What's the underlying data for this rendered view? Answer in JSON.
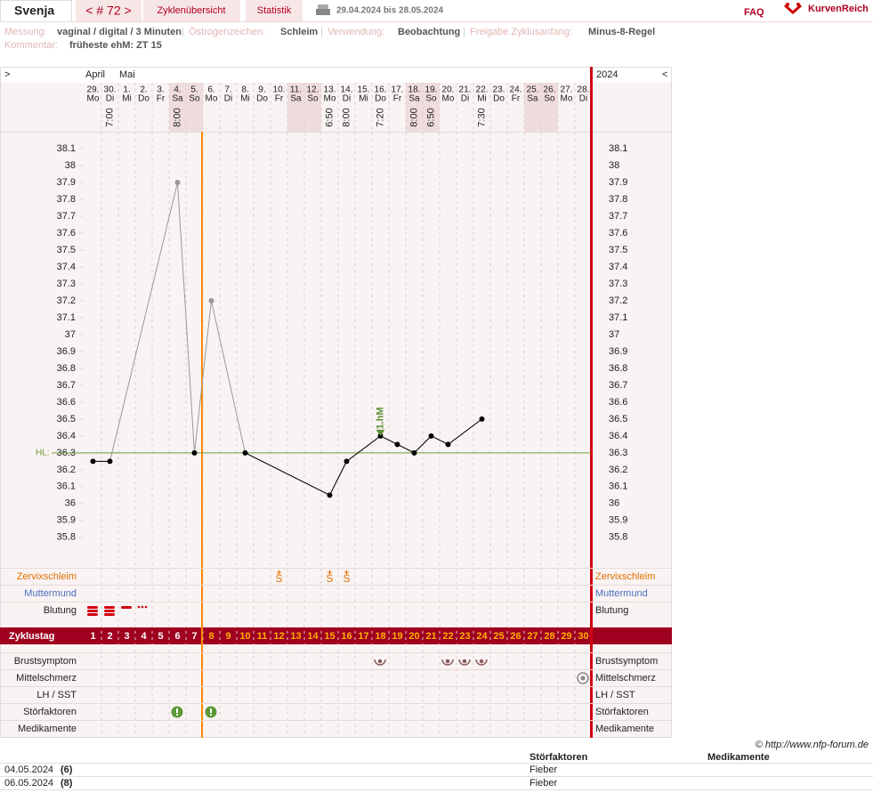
{
  "header": {
    "name": "Svenja",
    "cycle": "< # 72 >",
    "nav": [
      "Zyklenübersicht",
      "Statistik"
    ],
    "range": "29.04.2024 bis 28.05.2024",
    "faq": "FAQ",
    "brand": "KurvenReich"
  },
  "info": {
    "separator": "|",
    "items": [
      {
        "label": "Messung:",
        "value": "vaginal / digital / 3 Minuten"
      },
      {
        "label": "Östrogenzeichen:",
        "value": "Schleim"
      },
      {
        "label": "Verwendung:",
        "value": "Beobachtung"
      },
      {
        "label": "Freigabe Zyklusanfang:",
        "value": "Minus-8-Regel"
      }
    ],
    "comment": {
      "label": "Kommentar:",
      "value": "früheste ehM: ZT 15"
    }
  },
  "chart_header": {
    "left": ">",
    "right": "<",
    "year": "2024"
  },
  "days": {
    "months": [
      "April",
      null,
      "Mai",
      null,
      null,
      null,
      null,
      null,
      null,
      null,
      null,
      null,
      null,
      null,
      null,
      null,
      null,
      null,
      null,
      null,
      null,
      null,
      null,
      null,
      null,
      null,
      null,
      null,
      null,
      null
    ],
    "dates": [
      "29.",
      "30.",
      "1.",
      "2.",
      "3.",
      "4.",
      "5.",
      "6.",
      "7.",
      "8.",
      "9.",
      "10.",
      "11.",
      "12.",
      "13.",
      "14.",
      "15.",
      "16.",
      "17.",
      "18.",
      "19.",
      "20.",
      "21.",
      "22.",
      "23.",
      "24.",
      "25.",
      "26.",
      "27.",
      "28."
    ],
    "weekdays": [
      "Mo",
      "Di",
      "Mi",
      "Do",
      "Fr",
      "Sa",
      "So",
      "Mo",
      "Di",
      "Mi",
      "Do",
      "Fr",
      "Sa",
      "So",
      "Mo",
      "Di",
      "Mi",
      "Do",
      "Fr",
      "Sa",
      "So",
      "Mo",
      "Di",
      "Mi",
      "Do",
      "Fr",
      "Sa",
      "So",
      "Mo",
      "Di"
    ],
    "weekend": [
      false,
      false,
      false,
      false,
      false,
      true,
      true,
      false,
      false,
      false,
      false,
      false,
      true,
      true,
      false,
      false,
      false,
      false,
      false,
      true,
      true,
      false,
      false,
      false,
      false,
      false,
      true,
      true,
      false,
      false
    ],
    "times": [
      null,
      "7:00",
      null,
      null,
      null,
      "8:00",
      null,
      null,
      null,
      null,
      null,
      null,
      null,
      null,
      "6:50",
      "8:00",
      null,
      "7:20",
      null,
      "8:00",
      "6:50",
      null,
      null,
      "7:30",
      null,
      null,
      null,
      null,
      null,
      null
    ]
  },
  "cycle_day_label": "Zyklustag",
  "cycle_days": [
    1,
    2,
    3,
    4,
    5,
    6,
    7,
    8,
    9,
    10,
    11,
    12,
    13,
    14,
    15,
    16,
    17,
    18,
    19,
    20,
    21,
    22,
    23,
    24,
    25,
    26,
    27,
    28,
    29,
    30
  ],
  "rows_top": [
    "Zervixschleim",
    "Muttermund",
    "Blutung"
  ],
  "rows_bottom": [
    "Brustsymptom",
    "Mittelschmerz",
    "LH / SST",
    "Störfaktoren",
    "Medikamente"
  ],
  "zervix_symbols": [
    null,
    null,
    null,
    null,
    null,
    null,
    null,
    null,
    null,
    null,
    null,
    "S",
    null,
    null,
    "S",
    "S",
    null,
    null,
    null,
    null,
    null,
    null,
    null,
    null,
    null,
    null,
    null,
    null,
    null,
    null
  ],
  "chart_data": {
    "type": "line",
    "color": "#000000",
    "excluded_color": "#999999",
    "values": [
      36.25,
      36.25,
      null,
      null,
      null,
      37.9,
      36.3,
      37.2,
      null,
      36.3,
      null,
      null,
      null,
      null,
      36.05,
      36.25,
      null,
      36.4,
      36.35,
      36.3,
      36.4,
      36.35,
      null,
      36.5,
      null,
      null,
      null,
      null,
      null,
      null
    ],
    "excluded": [
      false,
      false,
      false,
      false,
      false,
      true,
      false,
      true,
      false,
      false,
      false,
      false,
      false,
      false,
      false,
      false,
      false,
      false,
      false,
      false,
      false,
      false,
      false,
      false,
      false,
      false,
      false,
      false,
      false,
      false
    ],
    "ylim": [
      35.62,
      38.2
    ],
    "yticks": [
      38.1,
      38,
      37.9,
      37.8,
      37.7,
      37.6,
      37.5,
      37.4,
      37.3,
      37.2,
      37.1,
      37,
      36.9,
      36.8,
      36.7,
      36.6,
      36.5,
      36.4,
      36.3,
      36.2,
      36.1,
      36,
      35.9,
      35.8
    ],
    "coverline": {
      "label": "HL:",
      "value": 36.3,
      "color": "#6b9a3c"
    },
    "annotation": {
      "text": "1.hM",
      "day": 18,
      "color": "#5b8f35"
    }
  },
  "footer": {
    "copyright": "© http://www.nfp-forum.de",
    "table": {
      "headers": [
        "Störfaktoren",
        "Medikamente"
      ],
      "rows": [
        [
          "04.05.2024",
          "(6)",
          "Fieber"
        ],
        [
          "06.05.2024",
          "(8)",
          "Fieber"
        ]
      ]
    }
  }
}
